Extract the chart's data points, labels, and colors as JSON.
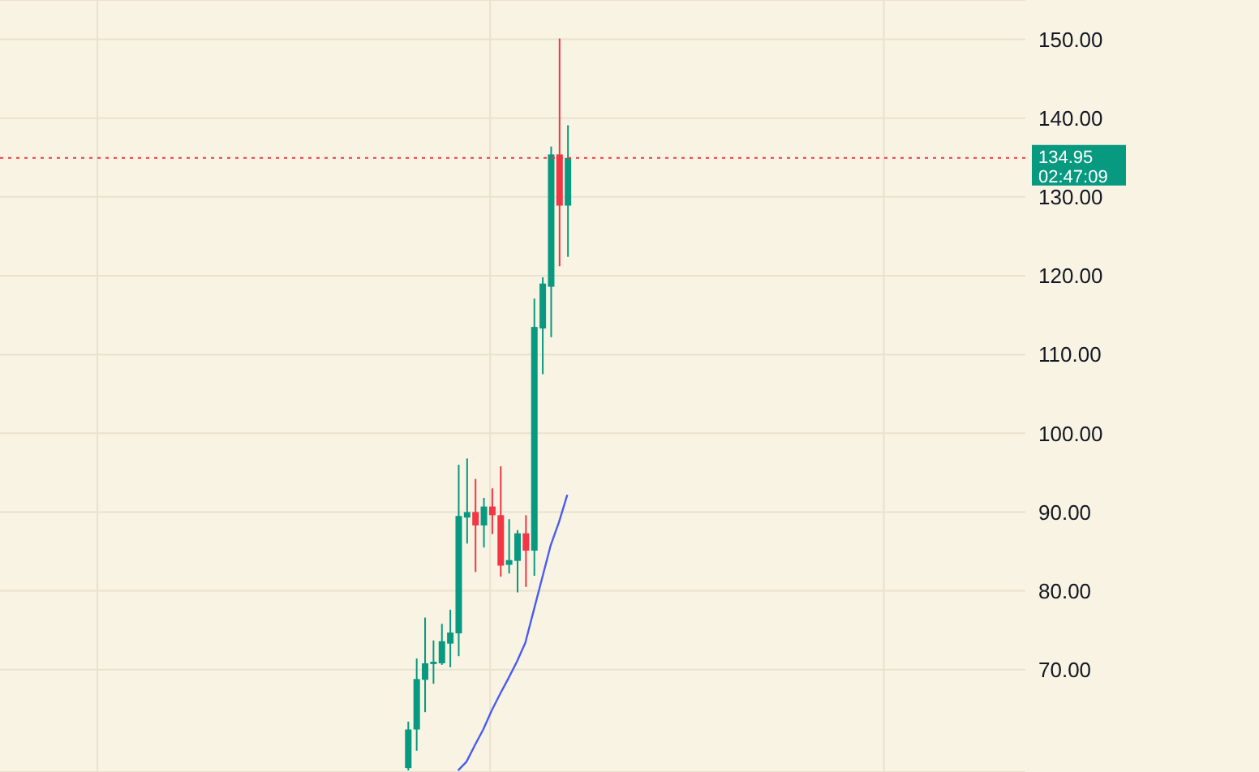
{
  "chart_data": {
    "type": "candlestick",
    "categories": [
      null,
      null,
      null,
      null,
      null,
      null,
      null,
      null,
      null,
      null,
      null,
      null,
      null,
      null,
      null,
      null,
      null,
      null,
      null,
      null,
      null,
      null,
      null,
      null,
      null,
      null,
      null,
      null,
      null,
      null,
      null,
      null,
      null,
      null,
      null,
      null,
      null,
      null,
      null,
      null,
      null,
      null,
      null,
      null,
      null,
      null,
      null,
      null,
      null,
      null,
      null,
      null,
      null,
      null,
      null,
      null,
      null,
      null,
      null,
      null,
      null,
      null,
      null,
      null,
      null,
      null,
      null,
      null,
      null,
      null,
      null,
      null,
      null,
      null,
      null,
      null,
      null,
      null,
      null,
      null,
      null,
      null,
      null,
      null,
      null,
      null,
      null,
      null,
      null,
      null,
      null,
      null,
      null,
      null,
      null,
      null,
      null,
      null,
      null,
      null,
      null,
      null,
      null,
      null,
      null,
      null,
      null,
      null,
      null,
      null,
      null,
      null,
      null,
      null,
      null,
      null,
      null,
      null,
      null,
      null,
      null,
      null
    ],
    "ohlc": [
      null,
      null,
      null,
      null,
      null,
      null,
      null,
      null,
      null,
      null,
      null,
      null,
      null,
      null,
      null,
      null,
      null,
      null,
      null,
      null,
      null,
      null,
      null,
      null,
      null,
      null,
      null,
      null,
      null,
      null,
      null,
      null,
      null,
      null,
      null,
      null,
      null,
      null,
      null,
      null,
      null,
      null,
      null,
      null,
      null,
      null,
      null,
      null,
      [
        57.5,
        63.4,
        57.2,
        62.4
      ],
      [
        62.4,
        71.4,
        59.7,
        68.8
      ],
      [
        68.7,
        76.6,
        64.6,
        70.8
      ],
      [
        70.7,
        73.7,
        68.2,
        71.0
      ],
      [
        70.8,
        75.8,
        70.6,
        73.6
      ],
      [
        73.3,
        77.6,
        70.3,
        74.7
      ],
      [
        74.6,
        96.0,
        71.7,
        89.5
      ],
      [
        89.3,
        96.8,
        86.0,
        90.0
      ],
      [
        90.0,
        94.2,
        82.4,
        88.3
      ],
      [
        88.3,
        91.8,
        85.5,
        90.7
      ],
      [
        90.7,
        93.0,
        87.2,
        89.6
      ],
      [
        89.6,
        95.8,
        81.8,
        83.2
      ],
      [
        83.3,
        89.1,
        82.2,
        83.9
      ],
      [
        83.8,
        87.7,
        79.8,
        87.3
      ],
      [
        87.3,
        89.6,
        80.5,
        85.1
      ],
      [
        85.1,
        117.1,
        81.9,
        113.5
      ],
      [
        113.3,
        119.8,
        107.5,
        119.0
      ],
      [
        118.6,
        136.4,
        112.2,
        135.4
      ],
      [
        135.4,
        150.1,
        121.2,
        128.9
      ],
      [
        128.9,
        139.1,
        122.4,
        134.95
      ],
      null,
      null,
      null,
      null,
      null,
      null,
      null,
      null,
      null,
      null,
      null,
      null,
      null,
      null,
      null,
      null,
      null,
      null,
      null,
      null,
      null,
      null,
      null,
      null,
      null,
      null,
      null,
      null,
      null,
      null,
      null,
      null,
      null,
      null,
      null,
      null,
      null,
      null,
      null,
      null,
      null,
      null,
      null,
      null,
      null,
      null,
      null,
      null,
      null,
      null,
      null,
      null,
      null,
      null
    ],
    "colors": [
      null,
      null,
      null,
      null,
      null,
      null,
      null,
      null,
      null,
      null,
      null,
      null,
      null,
      null,
      null,
      null,
      null,
      null,
      null,
      null,
      null,
      null,
      null,
      null,
      null,
      null,
      null,
      null,
      null,
      null,
      null,
      null,
      null,
      null,
      null,
      null,
      null,
      null,
      null,
      null,
      null,
      null,
      null,
      null,
      null,
      null,
      null,
      null,
      "#089981",
      "#089981",
      "#089981",
      "#089981",
      "#089981",
      "#089981",
      "#089981",
      "#089981",
      "#f23645",
      "#089981",
      "#f23645",
      "#f23645",
      "#089981",
      "#089981",
      "#f23645",
      "#089981",
      "#089981",
      "#089981",
      "#f23645",
      "#089981",
      null,
      null,
      null,
      null,
      null,
      null,
      null,
      null,
      null,
      null,
      null,
      null,
      null,
      null,
      null,
      null,
      null,
      null,
      null,
      null,
      null,
      null,
      null,
      null,
      null,
      null,
      null,
      null,
      null,
      null,
      null,
      null,
      null,
      null,
      null,
      null,
      null,
      null,
      null,
      null,
      null,
      null,
      null,
      null,
      null,
      null,
      null,
      null,
      null,
      null,
      null,
      null,
      null,
      null
    ],
    "series": [
      {
        "type": "line",
        "color": "#4a5cf0",
        "values": [
          null,
          null,
          null,
          null,
          null,
          null,
          null,
          null,
          null,
          null,
          null,
          null,
          null,
          null,
          null,
          null,
          null,
          null,
          null,
          null,
          null,
          null,
          null,
          null,
          null,
          null,
          null,
          null,
          null,
          null,
          null,
          null,
          null,
          null,
          null,
          null,
          null,
          null,
          null,
          null,
          null,
          null,
          null,
          null,
          null,
          null,
          null,
          null,
          null,
          null,
          null,
          null,
          null,
          null,
          57.2,
          58.3,
          60.4,
          62.4,
          64.8,
          66.9,
          68.9,
          71.0,
          73.4,
          77.5,
          81.6,
          85.7,
          88.7,
          92.2,
          null,
          null,
          null,
          null,
          null,
          null,
          null,
          null,
          null,
          null,
          null,
          null,
          null,
          null,
          null,
          null,
          null,
          null,
          null,
          null,
          null,
          null,
          null,
          null,
          null,
          null,
          null,
          null,
          null,
          null,
          null,
          null,
          null,
          null,
          null,
          null,
          null,
          null,
          null,
          null,
          null,
          null,
          null,
          null,
          null,
          null,
          null,
          null,
          null,
          null,
          null,
          null,
          null,
          null
        ]
      }
    ],
    "ylim": [
      57,
      155
    ],
    "yticks": [
      {
        "value": 70,
        "label": "70.00"
      },
      {
        "value": 80,
        "label": "80.00"
      },
      {
        "value": 90,
        "label": "90.00"
      },
      {
        "value": 100,
        "label": "100.00"
      },
      {
        "value": 110,
        "label": "110.00"
      },
      {
        "value": 120,
        "label": "120.00"
      },
      {
        "value": 130,
        "label": "130.00"
      },
      {
        "value": 140,
        "label": "140.00"
      },
      {
        "value": 150,
        "label": "150.00"
      }
    ],
    "ref_lines": [
      {
        "axis": "y",
        "value": 134.95,
        "label": "134.95",
        "color": "#f23645",
        "line_style": "dotted"
      }
    ],
    "annotations": [
      "02:47:09"
    ],
    "grid": true,
    "tick_labels": "y"
  }
}
